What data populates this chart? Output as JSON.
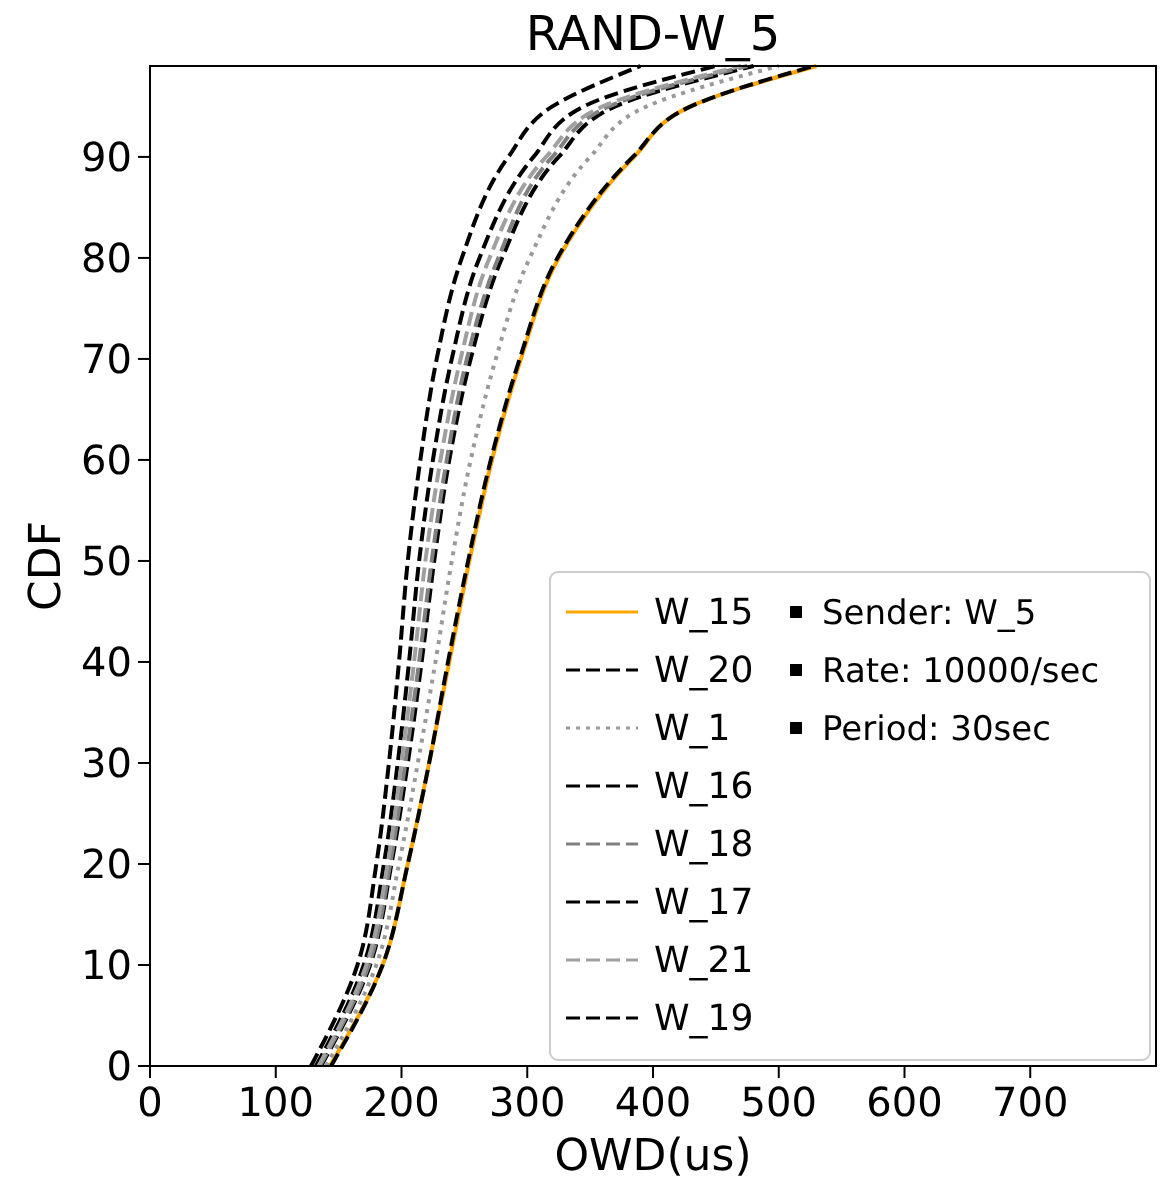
{
  "chart_data": {
    "type": "line",
    "title": "RAND-W_5",
    "xlabel": "OWD(us)",
    "ylabel": "CDF",
    "xlim": [
      0,
      800
    ],
    "xticks": [
      0,
      100,
      200,
      300,
      400,
      500,
      600,
      700
    ],
    "ylim": [
      0,
      99
    ],
    "yticks": [
      0,
      10,
      20,
      30,
      40,
      50,
      60,
      70,
      80,
      90
    ],
    "legend": "bottom right",
    "marker": "none",
    "annotations": [
      "Sender: W_5",
      "Rate: 10000/sec",
      "Period: 30sec"
    ],
    "series": [
      {
        "name": "W_15",
        "color": "#ffa500",
        "line_style": "solid",
        "x": [
          143,
          185,
          205,
          222,
          238,
          254,
          272,
          295,
          325,
          385,
          430,
          530
        ],
        "values": [
          0,
          10,
          20,
          30,
          40,
          50,
          60,
          70,
          80,
          90,
          95,
          99
        ]
      },
      {
        "name": "W_20",
        "color": "#000000",
        "line_style": "dashed",
        "x": [
          144,
          185,
          205,
          222,
          237,
          253,
          271,
          294,
          324,
          384,
          430,
          528
        ],
        "values": [
          0,
          10,
          20,
          30,
          40,
          50,
          60,
          70,
          80,
          90,
          95,
          99
        ]
      },
      {
        "name": "W_1",
        "color": "#999999",
        "line_style": "dotted",
        "x": [
          140,
          180,
          198,
          213,
          227,
          240,
          255,
          275,
          302,
          350,
          395,
          500
        ],
        "values": [
          0,
          10,
          20,
          30,
          40,
          50,
          60,
          70,
          80,
          90,
          95,
          99
        ]
      },
      {
        "name": "W_16",
        "color": "#000000",
        "line_style": "dashed",
        "x": [
          136,
          175,
          192,
          205,
          216,
          226,
          238,
          255,
          280,
          325,
          370,
          480
        ],
        "values": [
          0,
          10,
          20,
          30,
          40,
          50,
          60,
          70,
          80,
          90,
          95,
          99
        ]
      },
      {
        "name": "W_18",
        "color": "#808080",
        "line_style": "dashed",
        "x": [
          135,
          174,
          191,
          203,
          214,
          224,
          236,
          252,
          277,
          320,
          365,
          475
        ],
        "values": [
          0,
          10,
          20,
          30,
          40,
          50,
          60,
          70,
          80,
          90,
          95,
          99
        ]
      },
      {
        "name": "W_17",
        "color": "#000000",
        "line_style": "dashed",
        "x": [
          132,
          170,
          186,
          197,
          206,
          214,
          225,
          240,
          262,
          305,
          345,
          450
        ],
        "values": [
          0,
          10,
          20,
          30,
          40,
          50,
          60,
          70,
          80,
          90,
          95,
          99
        ]
      },
      {
        "name": "W_21",
        "color": "#a0a0a0",
        "line_style": "dashed",
        "x": [
          134,
          172,
          189,
          200,
          210,
          219,
          231,
          247,
          270,
          315,
          360,
          470
        ],
        "values": [
          0,
          10,
          20,
          30,
          40,
          50,
          60,
          70,
          80,
          90,
          95,
          99
        ]
      },
      {
        "name": "W_19",
        "color": "#000000",
        "line_style": "dashed",
        "x": [
          128,
          165,
          180,
          190,
          198,
          205,
          215,
          228,
          248,
          285,
          320,
          390
        ],
        "values": [
          0,
          10,
          20,
          30,
          40,
          50,
          60,
          70,
          80,
          90,
          95,
          99
        ]
      }
    ]
  }
}
